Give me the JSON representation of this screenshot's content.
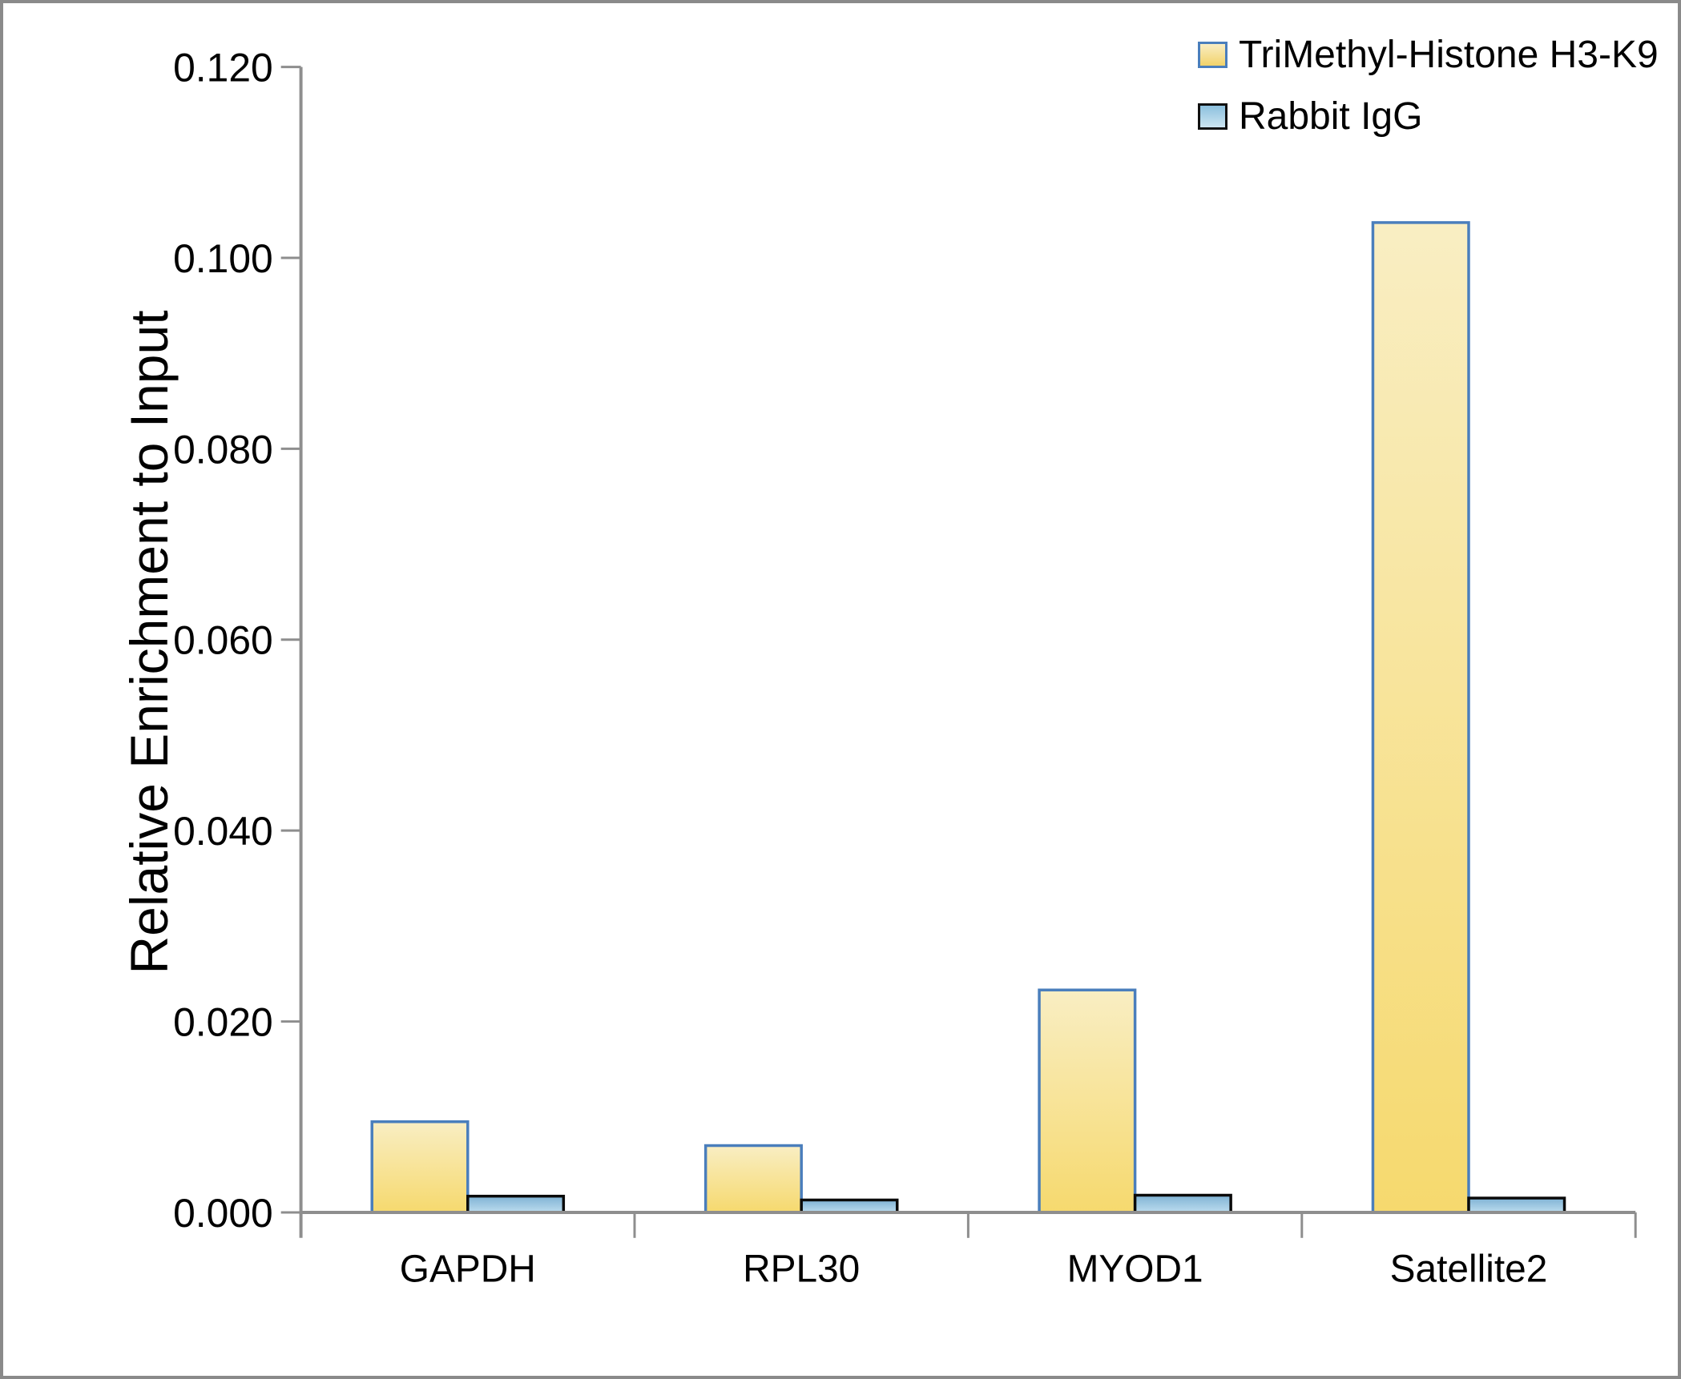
{
  "chart_data": {
    "type": "bar",
    "title": "",
    "xlabel": "",
    "ylabel": "Relative Enrichment to Input",
    "categories": [
      "GAPDH",
      "RPL30",
      "MYOD1",
      "Satellite2"
    ],
    "series": [
      {
        "name": "TriMethyl-Histone H3-K9",
        "values": [
          0.0095,
          0.007,
          0.0233,
          0.1037
        ],
        "fill_top": "#f9eec3",
        "fill_bottom": "#f6d96e",
        "border": "#4a7ebc"
      },
      {
        "name": "Rabbit IgG",
        "values": [
          0.0017,
          0.0013,
          0.0018,
          0.0015
        ],
        "fill_top": "#7fb2d4",
        "fill_bottom": "#bcdcee",
        "border": "#0a0a0a"
      }
    ],
    "y_axis": {
      "min": 0.0,
      "max": 0.12,
      "step": 0.02,
      "tick_labels": [
        "0.000",
        "0.020",
        "0.040",
        "0.060",
        "0.080",
        "0.100",
        "0.120"
      ]
    },
    "legend_position": "top-right",
    "grid": false,
    "axis_color": "#8e8e8e",
    "frame_color": "#8a8a8a"
  }
}
